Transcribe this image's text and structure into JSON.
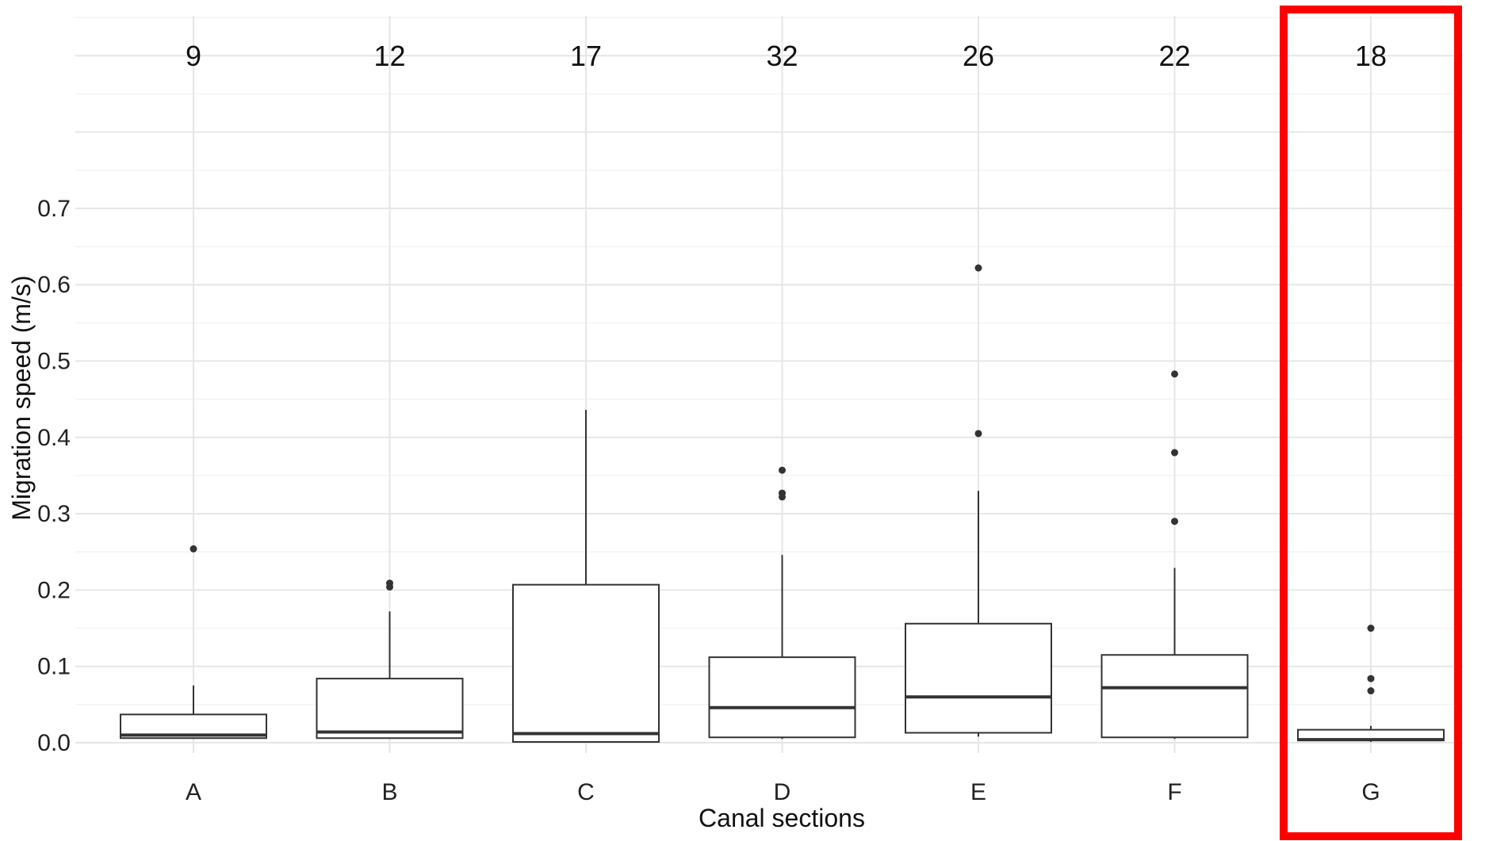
{
  "chart_data": {
    "type": "boxplot",
    "title": "",
    "xlabel": "Canal sections",
    "ylabel": "Migration speed (m/s)",
    "ylim": [
      -0.015,
      0.96
    ],
    "y_ticks": [
      0.0,
      0.1,
      0.2,
      0.3,
      0.4,
      0.5,
      0.6,
      0.7
    ],
    "y_tick_labels": [
      "0.0",
      "0.1",
      "0.2",
      "0.3",
      "0.4",
      "0.5",
      "0.6",
      "0.7"
    ],
    "grid": true,
    "categories": [
      "A",
      "B",
      "C",
      "D",
      "E",
      "F",
      "G"
    ],
    "counts": [
      "9",
      "12",
      "17",
      "32",
      "26",
      "22",
      "18"
    ],
    "boxes": [
      {
        "min": 0.005,
        "q1": 0.006,
        "median": 0.01,
        "q3": 0.037,
        "max": 0.075,
        "outliers": [
          0.254
        ]
      },
      {
        "min": 0.005,
        "q1": 0.006,
        "median": 0.014,
        "q3": 0.084,
        "max": 0.172,
        "outliers": [
          0.204,
          0.209
        ]
      },
      {
        "min": 0.0,
        "q1": 0.001,
        "median": 0.012,
        "q3": 0.207,
        "max": 0.436,
        "outliers": []
      },
      {
        "min": 0.005,
        "q1": 0.007,
        "median": 0.046,
        "q3": 0.112,
        "max": 0.246,
        "outliers": [
          0.322,
          0.327,
          0.357
        ]
      },
      {
        "min": 0.008,
        "q1": 0.013,
        "median": 0.06,
        "q3": 0.156,
        "max": 0.33,
        "outliers": [
          0.405,
          0.622
        ]
      },
      {
        "min": 0.005,
        "q1": 0.007,
        "median": 0.072,
        "q3": 0.115,
        "max": 0.229,
        "outliers": [
          0.29,
          0.38,
          0.483
        ]
      },
      {
        "min": 0.001,
        "q1": 0.003,
        "median": 0.004,
        "q3": 0.017,
        "max": 0.022,
        "outliers": [
          0.068,
          0.084,
          0.15
        ]
      }
    ],
    "highlight": {
      "category": "G",
      "color": "#ff0000"
    },
    "colors": {
      "box_stroke": "#333333",
      "grid_major": "#e6e6e6",
      "grid_minor": "#f3f3f3",
      "point": "#333333"
    }
  }
}
